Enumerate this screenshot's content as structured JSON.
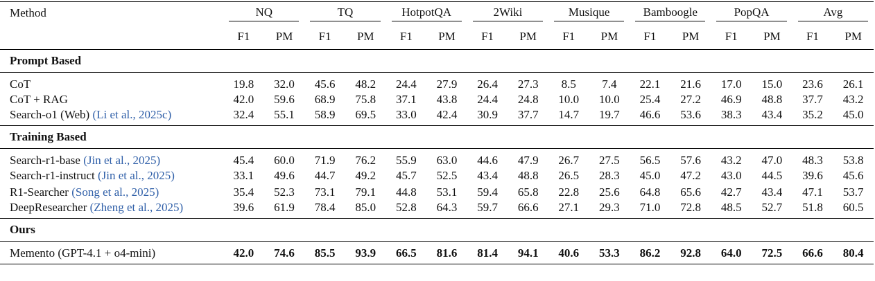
{
  "table": {
    "method_label": "Method",
    "groups": [
      "NQ",
      "TQ",
      "HotpotQA",
      "2Wiki",
      "Musique",
      "Bamboogle",
      "PopQA",
      "Avg"
    ],
    "metrics": [
      "F1",
      "PM"
    ],
    "sections": [
      {
        "title": "Prompt Based",
        "rows": [
          {
            "method": "CoT",
            "cells": [
              "19.8",
              "32.0",
              "45.6",
              "48.2",
              "24.4",
              "27.9",
              "26.4",
              "27.3",
              "8.5",
              "7.4",
              "22.1",
              "21.6",
              "17.0",
              "15.0",
              "23.6",
              "26.1"
            ]
          },
          {
            "method": "CoT + RAG",
            "cells": [
              "42.0",
              "59.6",
              "68.9",
              "75.8",
              "37.1",
              "43.8",
              "24.4",
              "24.8",
              "10.0",
              "10.0",
              "25.4",
              "27.2",
              "46.9",
              "48.8",
              "37.7",
              "43.2"
            ]
          },
          {
            "method": "Search-o1 (Web)",
            "citation": "(Li et al., 2025c)",
            "cells": [
              "32.4",
              "55.1",
              "58.9",
              "69.5",
              "33.0",
              "42.4",
              "30.9",
              "37.7",
              "14.7",
              "19.7",
              "46.6",
              "53.6",
              "38.3",
              "43.4",
              "35.2",
              "45.0"
            ]
          }
        ]
      },
      {
        "title": "Training Based",
        "rows": [
          {
            "method": "Search-r1-base",
            "citation": "(Jin et al., 2025)",
            "cells": [
              "45.4",
              "60.0",
              "71.9",
              "76.2",
              "55.9",
              "63.0",
              "44.6",
              "47.9",
              "26.7",
              "27.5",
              "56.5",
              "57.6",
              "43.2",
              "47.0",
              "48.3",
              "53.8"
            ]
          },
          {
            "method": "Search-r1-instruct",
            "citation": "(Jin et al., 2025)",
            "cells": [
              "33.1",
              "49.6",
              "44.7",
              "49.2",
              "45.7",
              "52.5",
              "43.4",
              "48.8",
              "26.5",
              "28.3",
              "45.0",
              "47.2",
              "43.0",
              "44.5",
              "39.6",
              "45.6"
            ]
          },
          {
            "method": "R1-Searcher",
            "citation": "(Song et al., 2025)",
            "cells": [
              "35.4",
              "52.3",
              "73.1",
              "79.1",
              "44.8",
              "53.1",
              "59.4",
              "65.8",
              "22.8",
              "25.6",
              "64.8",
              "65.6",
              "42.7",
              "43.4",
              "47.1",
              "53.7"
            ]
          },
          {
            "method": "DeepResearcher",
            "citation": "(Zheng et al., 2025)",
            "cells": [
              "39.6",
              "61.9",
              "78.4",
              "85.0",
              "52.8",
              "64.3",
              "59.7",
              "66.6",
              "27.1",
              "29.3",
              "71.0",
              "72.8",
              "48.5",
              "52.7",
              "51.8",
              "60.5"
            ]
          }
        ]
      },
      {
        "title": "Ours",
        "rows": [
          {
            "method": "Memento (GPT-4.1 + o4-mini)",
            "bold": true,
            "cells": [
              "42.0",
              "74.6",
              "85.5",
              "93.9",
              "66.5",
              "81.6",
              "81.4",
              "94.1",
              "40.6",
              "53.3",
              "86.2",
              "92.8",
              "64.0",
              "72.5",
              "66.6",
              "80.4"
            ]
          }
        ]
      }
    ]
  }
}
